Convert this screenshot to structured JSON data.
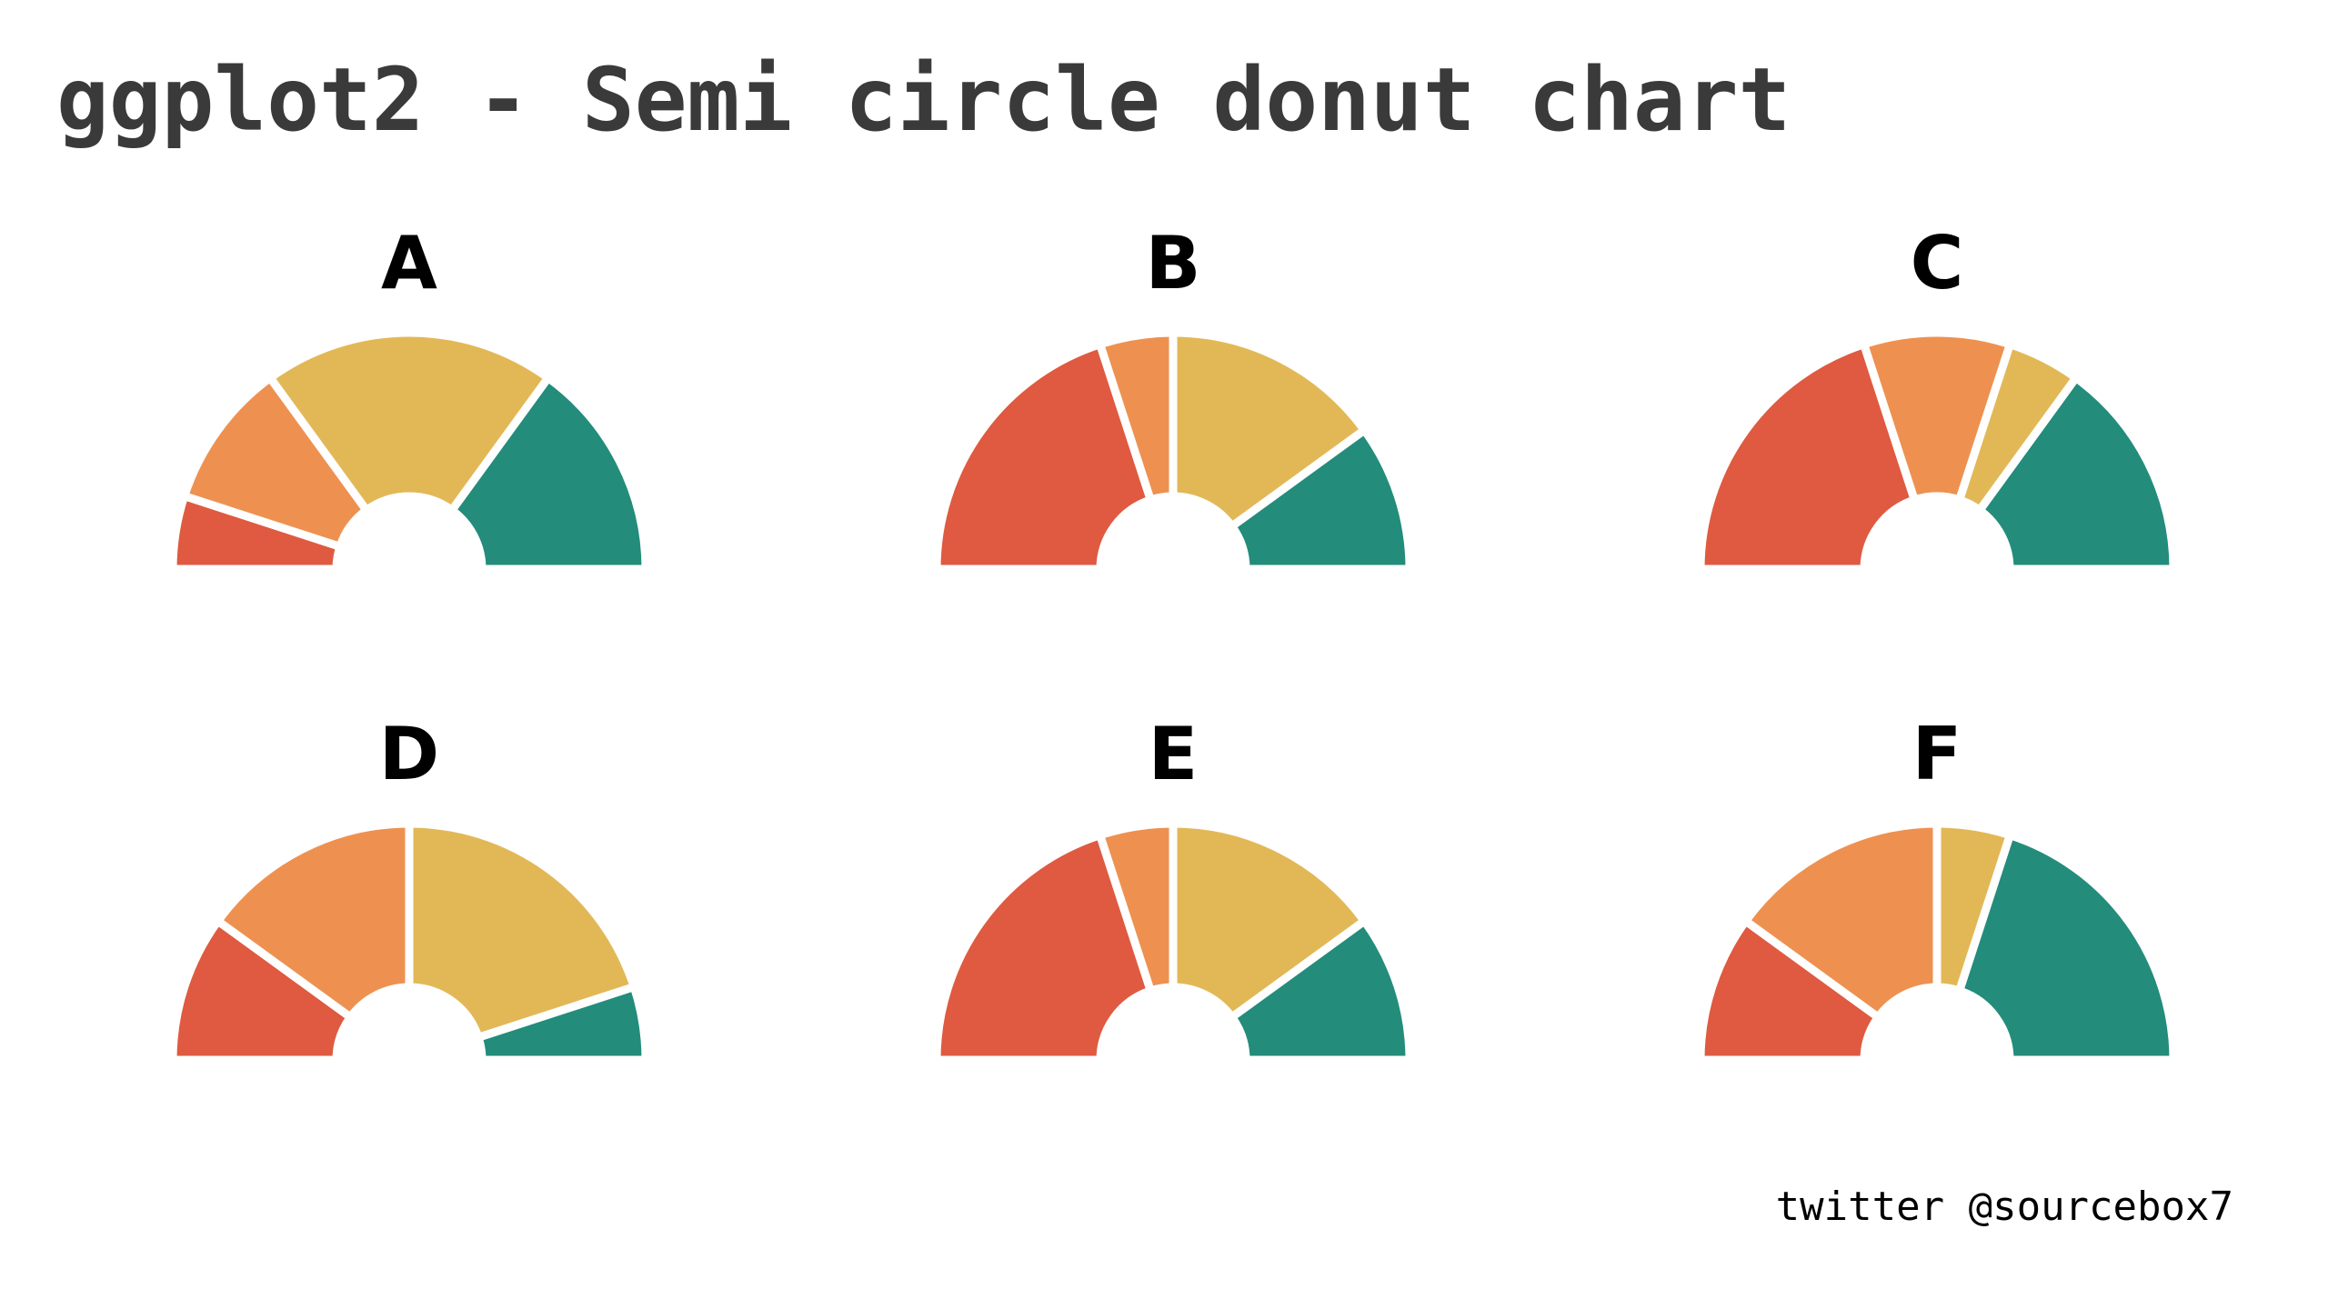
{
  "title": "ggplot2 - Semi circle donut chart",
  "credit": "twitter @sourcebox7",
  "colors": {
    "red": "#df5a40",
    "orange": "#ee9150",
    "yellow": "#e2b857",
    "teal": "#238c7b",
    "separator": "#ffffff",
    "title_text": "#3a3a3a",
    "label_text": "#000000"
  },
  "chart_data": [
    {
      "type": "pie",
      "title": "A",
      "categories": [
        "red",
        "orange",
        "yellow",
        "teal"
      ],
      "values": [
        0.1,
        0.2,
        0.4,
        0.3
      ]
    },
    {
      "type": "pie",
      "title": "B",
      "categories": [
        "red",
        "orange",
        "yellow",
        "teal"
      ],
      "values": [
        0.4,
        0.1,
        0.3,
        0.2
      ]
    },
    {
      "type": "pie",
      "title": "C",
      "categories": [
        "red",
        "orange",
        "yellow",
        "teal"
      ],
      "values": [
        0.4,
        0.2,
        0.1,
        0.3
      ]
    },
    {
      "type": "pie",
      "title": "D",
      "categories": [
        "red",
        "orange",
        "yellow",
        "teal"
      ],
      "values": [
        0.2,
        0.3,
        0.4,
        0.1
      ]
    },
    {
      "type": "pie",
      "title": "E",
      "categories": [
        "red",
        "orange",
        "yellow",
        "teal"
      ],
      "values": [
        0.4,
        0.1,
        0.3,
        0.2
      ]
    },
    {
      "type": "pie",
      "title": "F",
      "categories": [
        "red",
        "orange",
        "yellow",
        "teal"
      ],
      "values": [
        0.2,
        0.3,
        0.1,
        0.4
      ]
    }
  ]
}
